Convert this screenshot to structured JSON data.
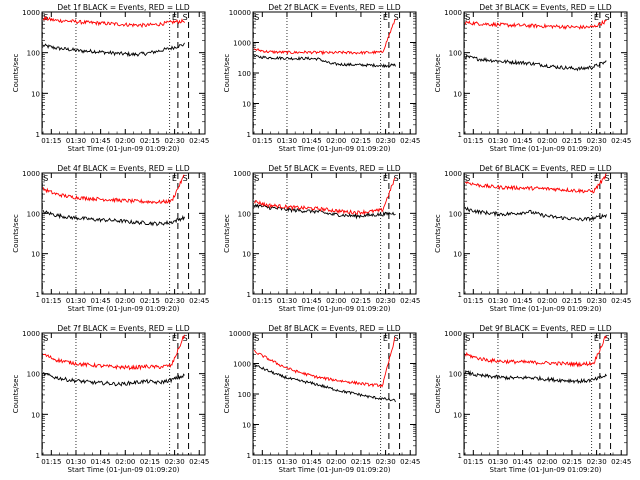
{
  "chart_data": [
    {
      "type": "line",
      "title": "Det 1f BLACK = Events, RED = LLD",
      "xlabel": "Start Time (01-Jun-09 01:09:20)",
      "ylabel": "Counts/sec",
      "x_ticks": [
        "01:15",
        "01:30",
        "01:45",
        "02:00",
        "02:15",
        "02:30",
        "02:45"
      ],
      "y_ticks": [
        "1",
        "10",
        "100",
        "1000"
      ],
      "ylim": [
        1,
        1000
      ],
      "yscale": "log",
      "markers": {
        "S_left": "S",
        "E": "E",
        "S_right": "S"
      },
      "series": [
        {
          "name": "BLACK",
          "color": "#000000",
          "values": [
            150,
            130,
            120,
            110,
            108,
            100,
            95,
            90,
            95,
            110,
            130,
            160
          ]
        },
        {
          "name": "RED",
          "color": "#ff0000",
          "values": [
            700,
            620,
            600,
            560,
            540,
            520,
            500,
            480,
            470,
            500,
            560,
            600
          ]
        }
      ]
    },
    {
      "type": "line",
      "title": "Det 2f BLACK = Events, RED = LLD",
      "xlabel": "Start Time (01-Jun-09 01:09:20)",
      "ylabel": "Counts/sec",
      "x_ticks": [
        "01:15",
        "01:30",
        "01:45",
        "02:00",
        "02:15",
        "02:30",
        "02:45"
      ],
      "y_ticks": [
        "1",
        "10",
        "100",
        "1000",
        "10000"
      ],
      "ylim": [
        1,
        10000
      ],
      "yscale": "log",
      "markers": {
        "S_left": "S",
        "E": "E",
        "S_right": "S"
      },
      "series": [
        {
          "name": "BLACK",
          "color": "#000000",
          "values": [
            350,
            320,
            310,
            300,
            300,
            290,
            200,
            190,
            185,
            180,
            175,
            180
          ]
        },
        {
          "name": "RED",
          "color": "#ff0000",
          "values": [
            600,
            500,
            480,
            470,
            480,
            470,
            460,
            470,
            460,
            470,
            480,
            6000
          ]
        }
      ]
    },
    {
      "type": "line",
      "title": "Det 3f BLACK = Events, RED = LLD",
      "xlabel": "Start Time (01-Jun-09 01:09:20)",
      "ylabel": "Counts/sec",
      "x_ticks": [
        "01:15",
        "01:30",
        "01:45",
        "02:00",
        "02:15",
        "02:30",
        "02:45"
      ],
      "y_ticks": [
        "1",
        "10",
        "100",
        "1000"
      ],
      "ylim": [
        1,
        1000
      ],
      "yscale": "log",
      "markers": {
        "S_left": "S",
        "E": "E",
        "S_right": "S"
      },
      "series": [
        {
          "name": "BLACK",
          "color": "#000000",
          "values": [
            80,
            70,
            65,
            60,
            58,
            55,
            50,
            45,
            42,
            40,
            45,
            60
          ]
        },
        {
          "name": "RED",
          "color": "#ff0000",
          "values": [
            550,
            520,
            500,
            480,
            470,
            460,
            450,
            440,
            430,
            420,
            430,
            600
          ]
        }
      ]
    },
    {
      "type": "line",
      "title": "Det 4f BLACK = Events, RED = LLD",
      "xlabel": "Start Time (01-Jun-09 01:09:20)",
      "ylabel": "Counts/sec",
      "x_ticks": [
        "01:15",
        "01:30",
        "01:45",
        "02:00",
        "02:15",
        "02:30",
        "02:45"
      ],
      "y_ticks": [
        "1",
        "10",
        "100",
        "1000"
      ],
      "ylim": [
        1,
        1000
      ],
      "yscale": "log",
      "markers": {
        "S_left": "S",
        "E": "E",
        "S_right": "S"
      },
      "series": [
        {
          "name": "BLACK",
          "color": "#000000",
          "values": [
            110,
            90,
            80,
            75,
            70,
            68,
            65,
            60,
            58,
            55,
            60,
            80
          ]
        },
        {
          "name": "RED",
          "color": "#ff0000",
          "values": [
            400,
            300,
            260,
            240,
            230,
            220,
            210,
            200,
            195,
            190,
            200,
            900
          ]
        }
      ]
    },
    {
      "type": "line",
      "title": "Det 5f BLACK = Events, RED = LLD",
      "xlabel": "Start Time (01-Jun-09 01:09:20)",
      "ylabel": "Counts/sec",
      "x_ticks": [
        "01:15",
        "01:30",
        "01:45",
        "02:00",
        "02:15",
        "02:30",
        "02:45"
      ],
      "y_ticks": [
        "1",
        "10",
        "100",
        "1000"
      ],
      "ylim": [
        1,
        1000
      ],
      "yscale": "log",
      "markers": {
        "S_left": "S",
        "E": "E",
        "S_right": "S"
      },
      "series": [
        {
          "name": "BLACK",
          "color": "#000000",
          "values": [
            160,
            140,
            130,
            120,
            115,
            110,
            95,
            90,
            85,
            90,
            95,
            100
          ]
        },
        {
          "name": "RED",
          "color": "#ff0000",
          "values": [
            200,
            160,
            150,
            140,
            135,
            130,
            120,
            110,
            105,
            110,
            120,
            800
          ]
        }
      ]
    },
    {
      "type": "line",
      "title": "Det 6f BLACK = Events, RED = LLD",
      "xlabel": "Start Time (01-Jun-09 01:09:20)",
      "ylabel": "Counts/sec",
      "x_ticks": [
        "01:15",
        "01:30",
        "01:45",
        "02:00",
        "02:15",
        "02:30",
        "02:45"
      ],
      "y_ticks": [
        "1",
        "10",
        "100",
        "1000"
      ],
      "ylim": [
        1,
        1000
      ],
      "yscale": "log",
      "markers": {
        "S_left": "S",
        "E": "E",
        "S_right": "S"
      },
      "series": [
        {
          "name": "BLACK",
          "color": "#000000",
          "values": [
            130,
            110,
            100,
            95,
            100,
            110,
            90,
            80,
            75,
            70,
            75,
            90
          ]
        },
        {
          "name": "RED",
          "color": "#ff0000",
          "values": [
            600,
            500,
            460,
            440,
            430,
            420,
            410,
            400,
            380,
            360,
            350,
            900
          ]
        }
      ]
    },
    {
      "type": "line",
      "title": "Det 7f BLACK = Events, RED = LLD",
      "xlabel": "Start Time (01-Jun-09 01:09:20)",
      "ylabel": "Counts/sec",
      "x_ticks": [
        "01:15",
        "01:30",
        "01:45",
        "02:00",
        "02:15",
        "02:30",
        "02:45"
      ],
      "y_ticks": [
        "1",
        "10",
        "100",
        "1000"
      ],
      "ylim": [
        1,
        1000
      ],
      "yscale": "log",
      "markers": {
        "S_left": "S",
        "E": "E",
        "S_right": "S"
      },
      "series": [
        {
          "name": "BLACK",
          "color": "#000000",
          "values": [
            100,
            80,
            70,
            65,
            60,
            58,
            55,
            60,
            65,
            60,
            70,
            90
          ]
        },
        {
          "name": "RED",
          "color": "#ff0000",
          "values": [
            300,
            220,
            190,
            170,
            160,
            150,
            145,
            140,
            150,
            145,
            160,
            900
          ]
        }
      ]
    },
    {
      "type": "line",
      "title": "Det 8f BLACK = Events, RED = LLD",
      "xlabel": "Start Time (01-Jun-09 01:09:20)",
      "ylabel": "Counts/sec",
      "x_ticks": [
        "01:15",
        "01:30",
        "01:45",
        "02:00",
        "02:15",
        "02:30",
        "02:45"
      ],
      "y_ticks": [
        "1",
        "10",
        "100",
        "1000",
        "10000"
      ],
      "ylim": [
        1,
        10000
      ],
      "yscale": "log",
      "markers": {
        "S_left": "S",
        "E": "E",
        "S_right": "S"
      },
      "series": [
        {
          "name": "BLACK",
          "color": "#000000",
          "values": [
            900,
            600,
            400,
            300,
            250,
            200,
            150,
            120,
            100,
            80,
            70,
            60
          ]
        },
        {
          "name": "RED",
          "color": "#ff0000",
          "values": [
            2500,
            1500,
            900,
            600,
            450,
            350,
            300,
            260,
            230,
            200,
            190,
            8000
          ]
        }
      ]
    },
    {
      "type": "line",
      "title": "Det 9f BLACK = Events, RED = LLD",
      "xlabel": "Start Time (01-Jun-09 01:09:20)",
      "ylabel": "Counts/sec",
      "x_ticks": [
        "01:15",
        "01:30",
        "01:45",
        "02:00",
        "02:15",
        "02:30",
        "02:45"
      ],
      "y_ticks": [
        "1",
        "10",
        "100",
        "1000"
      ],
      "ylim": [
        1,
        1000
      ],
      "yscale": "log",
      "markers": {
        "S_left": "S",
        "E": "E",
        "S_right": "S"
      },
      "series": [
        {
          "name": "BLACK",
          "color": "#000000",
          "values": [
            110,
            90,
            85,
            80,
            78,
            80,
            75,
            70,
            68,
            65,
            70,
            90
          ]
        },
        {
          "name": "RED",
          "color": "#ff0000",
          "values": [
            300,
            240,
            210,
            200,
            195,
            190,
            185,
            180,
            175,
            170,
            180,
            900
          ]
        }
      ]
    }
  ]
}
